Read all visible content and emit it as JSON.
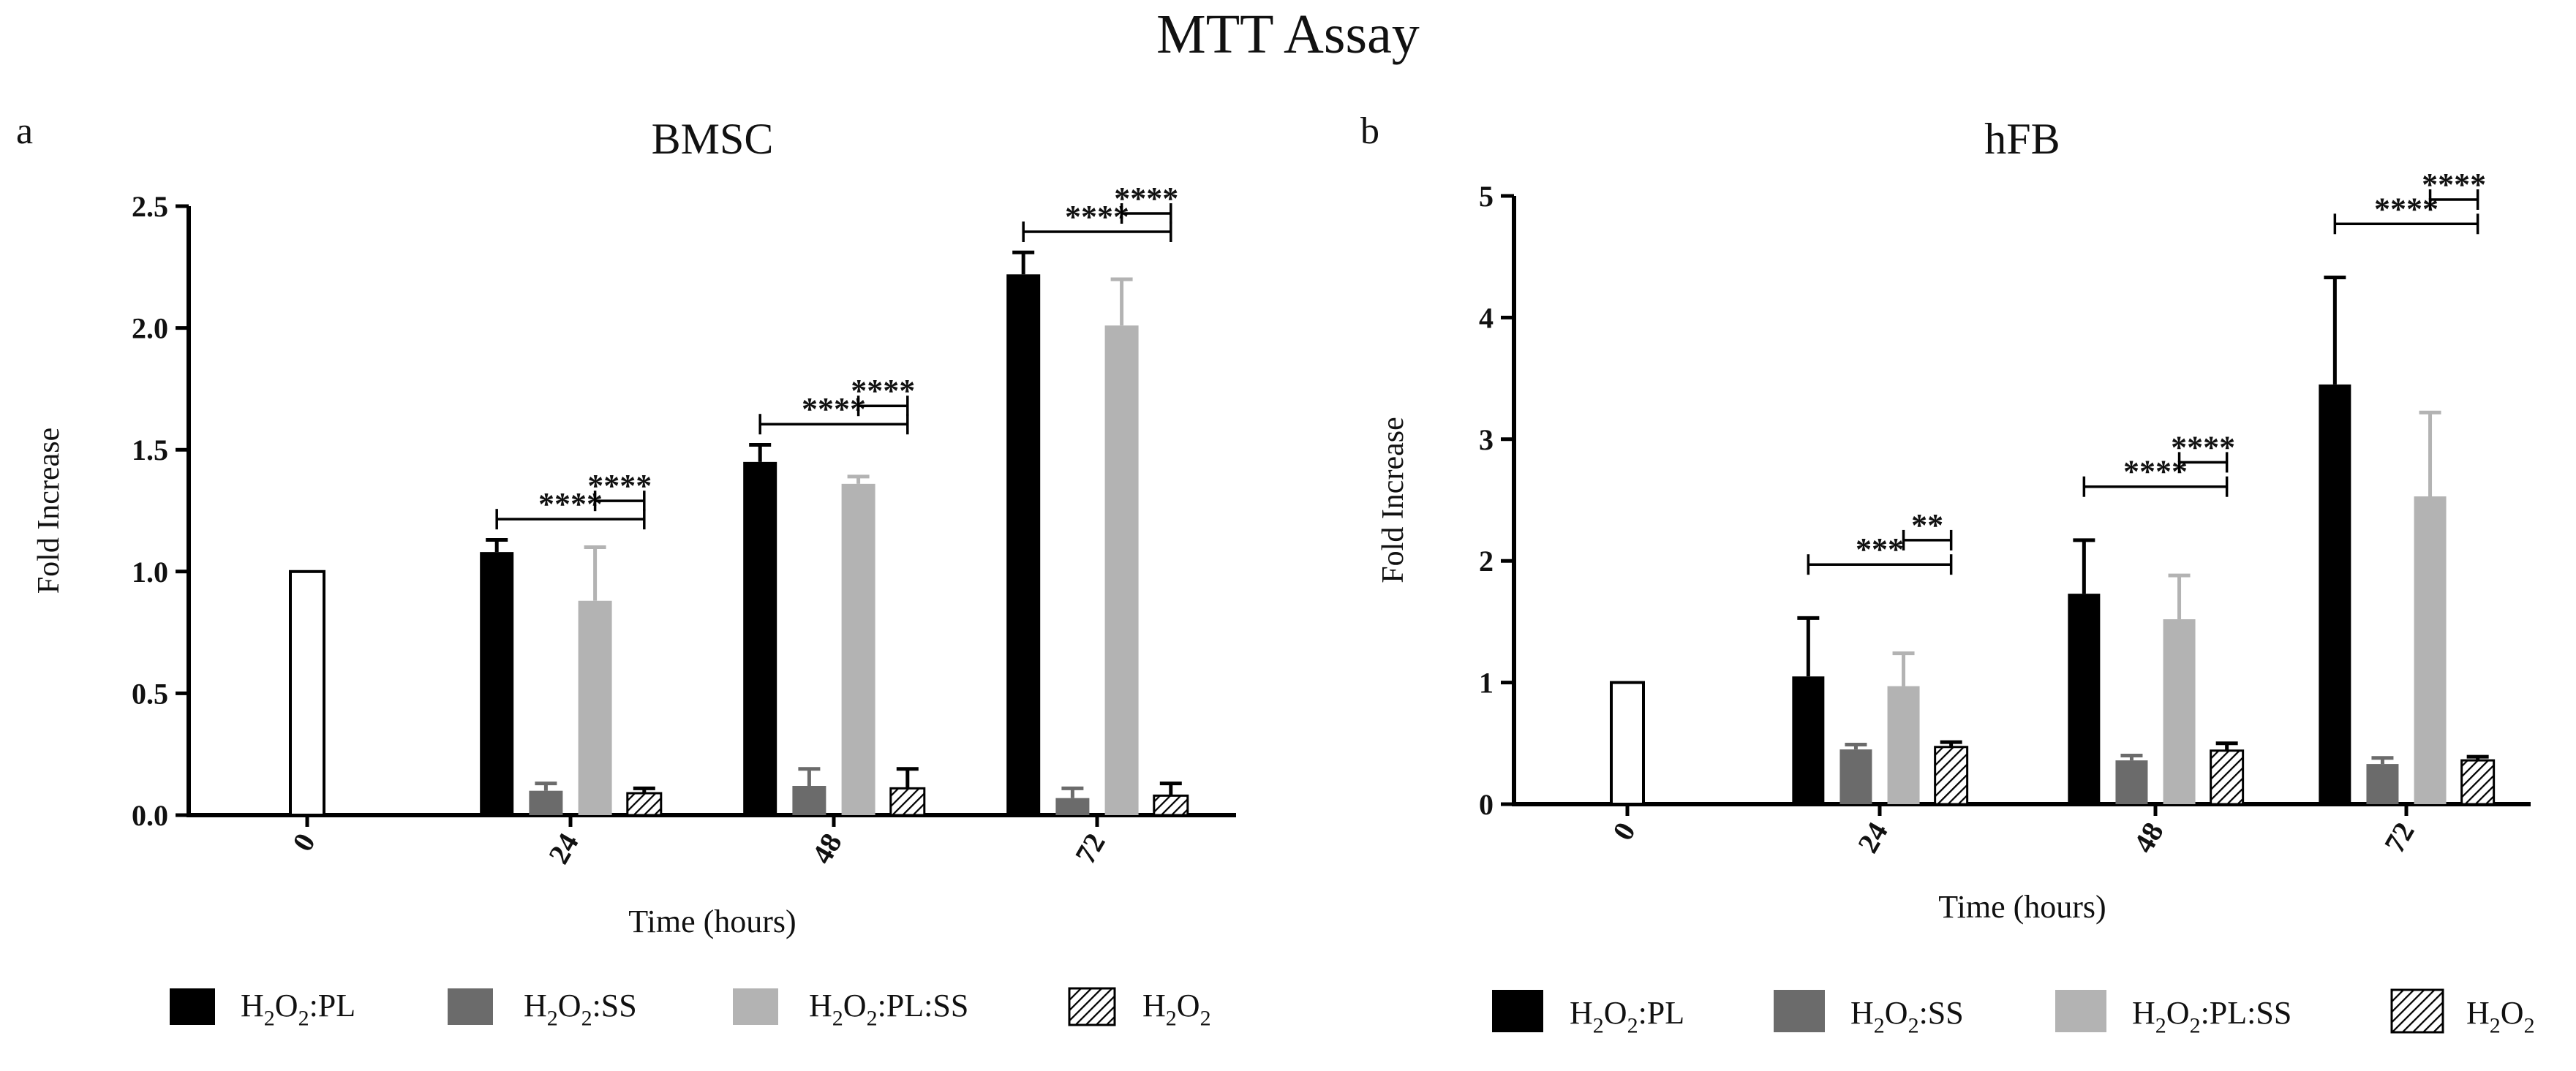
{
  "figure_title": "MTT Assay",
  "panels": [
    {
      "letter": "a",
      "title": "BMSC"
    },
    {
      "letter": "b",
      "title": "hFB"
    }
  ],
  "colors": {
    "H2O2:PL": "#000000",
    "H2O2:SS": "#6b6b6b",
    "H2O2:PL:SS": "#b3b3b3",
    "H2O2": "hatched",
    "control": "#ffffff"
  },
  "chart_data": [
    {
      "type": "bar",
      "title": "BMSC",
      "xlabel": "Time (hours)",
      "ylabel": "Fold Increase",
      "ylim": [
        0,
        2.5
      ],
      "yticks": [
        0.0,
        0.5,
        1.0,
        1.5,
        2.0,
        2.5
      ],
      "ytick_labels": [
        "0.0",
        "0.5",
        "1.0",
        "1.5",
        "2.0",
        "2.5"
      ],
      "categories": [
        "0",
        "24",
        "48",
        "72"
      ],
      "control": {
        "category": "0",
        "value": 1.0,
        "error": 0
      },
      "series": [
        {
          "name": "H2O2:PL",
          "values": [
            null,
            1.08,
            1.45,
            2.22
          ],
          "errors": [
            null,
            0.05,
            0.07,
            0.09
          ]
        },
        {
          "name": "H2O2:SS",
          "values": [
            null,
            0.1,
            0.12,
            0.07
          ],
          "errors": [
            null,
            0.03,
            0.07,
            0.04
          ]
        },
        {
          "name": "H2O2:PL:SS",
          "values": [
            null,
            0.88,
            1.36,
            2.01
          ],
          "errors": [
            null,
            0.22,
            0.03,
            0.19
          ]
        },
        {
          "name": "H2O2",
          "values": [
            null,
            0.09,
            0.11,
            0.08
          ],
          "errors": [
            null,
            0.02,
            0.08,
            0.05
          ]
        }
      ],
      "significance": [
        {
          "category": "24",
          "from": "H2O2:PL",
          "to": "H2O2",
          "label": "****"
        },
        {
          "category": "24",
          "from": "H2O2:PL:SS",
          "to": "H2O2",
          "label": "****"
        },
        {
          "category": "48",
          "from": "H2O2:PL",
          "to": "H2O2",
          "label": "****"
        },
        {
          "category": "48",
          "from": "H2O2:PL:SS",
          "to": "H2O2",
          "label": "****"
        },
        {
          "category": "72",
          "from": "H2O2:PL",
          "to": "H2O2",
          "label": "****"
        },
        {
          "category": "72",
          "from": "H2O2:PL:SS",
          "to": "H2O2",
          "label": "****"
        }
      ],
      "legend_position": "bottom"
    },
    {
      "type": "bar",
      "title": "hFB",
      "xlabel": "Time (hours)",
      "ylabel": "Fold Increase",
      "ylim": [
        0,
        5
      ],
      "yticks": [
        0,
        1,
        2,
        3,
        4,
        5
      ],
      "ytick_labels": [
        "0",
        "1",
        "2",
        "3",
        "4",
        "5"
      ],
      "categories": [
        "0",
        "24",
        "48",
        "72"
      ],
      "control": {
        "category": "0",
        "value": 1.0,
        "error": 0
      },
      "series": [
        {
          "name": "H2O2:PL",
          "values": [
            null,
            1.05,
            1.73,
            3.45
          ],
          "errors": [
            null,
            0.48,
            0.44,
            0.88
          ]
        },
        {
          "name": "H2O2:SS",
          "values": [
            null,
            0.45,
            0.36,
            0.33
          ],
          "errors": [
            null,
            0.04,
            0.04,
            0.05
          ]
        },
        {
          "name": "H2O2:PL:SS",
          "values": [
            null,
            0.97,
            1.52,
            2.53
          ],
          "errors": [
            null,
            0.27,
            0.36,
            0.69
          ]
        },
        {
          "name": "H2O2",
          "values": [
            null,
            0.47,
            0.44,
            0.36
          ],
          "errors": [
            null,
            0.04,
            0.06,
            0.03
          ]
        }
      ],
      "significance": [
        {
          "category": "24",
          "from": "H2O2:PL",
          "to": "H2O2",
          "label": "***"
        },
        {
          "category": "24",
          "from": "H2O2:PL:SS",
          "to": "H2O2",
          "label": "**"
        },
        {
          "category": "48",
          "from": "H2O2:PL",
          "to": "H2O2",
          "label": "****"
        },
        {
          "category": "48",
          "from": "H2O2:PL:SS",
          "to": "H2O2",
          "label": "****"
        },
        {
          "category": "72",
          "from": "H2O2:PL",
          "to": "H2O2",
          "label": "****"
        },
        {
          "category": "72",
          "from": "H2O2:PL:SS",
          "to": "H2O2",
          "label": "****"
        }
      ],
      "legend_position": "bottom"
    }
  ]
}
